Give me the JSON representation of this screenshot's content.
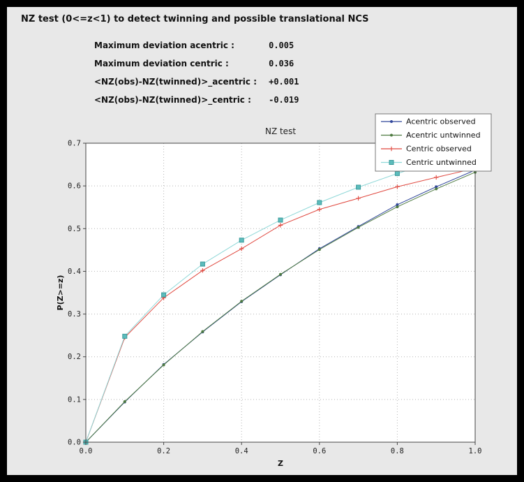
{
  "panel": {
    "title": "NZ test (0<=z<1) to detect twinning and possible translational NCS",
    "stats": [
      {
        "label": "Maximum deviation acentric :",
        "value": "0.005"
      },
      {
        "label": "Maximum deviation centric :",
        "value": "0.036"
      },
      {
        "label": "<NZ(obs)-NZ(twinned)>_acentric :",
        "value": "+0.001"
      },
      {
        "label": "<NZ(obs)-NZ(twinned)>_centric :",
        "value": "-0.019"
      }
    ]
  },
  "chart_data": {
    "type": "line",
    "title": "NZ test",
    "xlabel": "Z",
    "ylabel": "P(Z>=z)",
    "xlim": [
      0.0,
      1.0
    ],
    "ylim": [
      0.0,
      0.7
    ],
    "xticks": [
      0.0,
      0.2,
      0.4,
      0.6,
      0.8,
      1.0
    ],
    "yticks": [
      0.0,
      0.1,
      0.2,
      0.3,
      0.4,
      0.5,
      0.6,
      0.7
    ],
    "grid": true,
    "legend_position": "top-right",
    "x": [
      0.0,
      0.1,
      0.2,
      0.3,
      0.4,
      0.5,
      0.6,
      0.7,
      0.8,
      0.9,
      1.0
    ],
    "series": [
      {
        "name": "Acentric observed",
        "color": "#31479b",
        "marker": "circle",
        "values": [
          0.0,
          0.094,
          0.182,
          0.258,
          0.329,
          0.392,
          0.453,
          0.505,
          0.556,
          0.598,
          0.637
        ]
      },
      {
        "name": "Acentric untwinned",
        "color": "#4e7b41",
        "marker": "circle",
        "values": [
          0.0,
          0.095,
          0.181,
          0.259,
          0.33,
          0.393,
          0.451,
          0.503,
          0.551,
          0.593,
          0.632
        ]
      },
      {
        "name": "Centric observed",
        "color": "#e0483f",
        "marker": "plus",
        "values": [
          0.0,
          0.245,
          0.338,
          0.402,
          0.453,
          0.508,
          0.545,
          0.571,
          0.598,
          0.62,
          0.641
        ]
      },
      {
        "name": "Centric untwinned",
        "color": "#8fd8d8",
        "marker": "square",
        "marker_color": "#5cbcbc",
        "marker_edge": "#3a9a9a",
        "values": [
          0.0,
          0.248,
          0.345,
          0.417,
          0.473,
          0.52,
          0.561,
          0.597,
          0.629,
          0.657,
          0.683
        ]
      }
    ]
  }
}
